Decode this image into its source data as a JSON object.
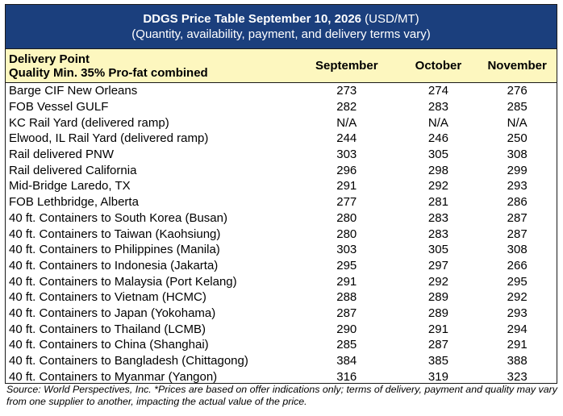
{
  "title": {
    "bold": "DDGS Price Table September 10, 2026",
    "unit": " (USD/MT)",
    "subtitle": "(Quantity, availability, payment, and delivery terms vary)"
  },
  "header": {
    "line1": "Delivery Point",
    "line2": "Quality Min. 35% Pro-fat combined",
    "months": [
      "September",
      "October",
      "November"
    ]
  },
  "rows": [
    {
      "name": "Barge CIF New Orleans",
      "sep": "273",
      "oct": "274",
      "nov": "276"
    },
    {
      "name": "FOB Vessel GULF",
      "sep": "282",
      "oct": "283",
      "nov": "285"
    },
    {
      "name": "KC Rail Yard (delivered ramp)",
      "sep": "N/A",
      "oct": "N/A",
      "nov": "N/A"
    },
    {
      "name": "Elwood, IL Rail Yard (delivered ramp)",
      "sep": "244",
      "oct": "246",
      "nov": "250"
    },
    {
      "name": "Rail delivered PNW",
      "sep": "303",
      "oct": "305",
      "nov": "308"
    },
    {
      "name": "Rail delivered California",
      "sep": "296",
      "oct": "298",
      "nov": "299"
    },
    {
      "name": "Mid-Bridge Laredo, TX",
      "sep": "291",
      "oct": "292",
      "nov": "293"
    },
    {
      "name": "FOB Lethbridge, Alberta",
      "sep": "277",
      "oct": "281",
      "nov": "286"
    },
    {
      "name": "40 ft. Containers to South Korea (Busan)",
      "sep": "280",
      "oct": "283",
      "nov": "287"
    },
    {
      "name": "40 ft. Containers to Taiwan (Kaohsiung)",
      "sep": "280",
      "oct": "283",
      "nov": "287"
    },
    {
      "name": "40 ft. Containers to Philippines (Manila)",
      "sep": "303",
      "oct": "305",
      "nov": "308"
    },
    {
      "name": "40 ft. Containers to Indonesia (Jakarta)",
      "sep": "295",
      "oct": "297",
      "nov": "266"
    },
    {
      "name": "40 ft. Containers to Malaysia (Port Kelang)",
      "sep": "291",
      "oct": "292",
      "nov": "295"
    },
    {
      "name": "40 ft. Containers to Vietnam (HCMC)",
      "sep": "288",
      "oct": "289",
      "nov": "292"
    },
    {
      "name": "40 ft. Containers to Japan (Yokohama)",
      "sep": "287",
      "oct": "289",
      "nov": "293"
    },
    {
      "name": "40 ft. Containers to Thailand (LCMB)",
      "sep": "290",
      "oct": "291",
      "nov": "294"
    },
    {
      "name": "40 ft. Containers to China (Shanghai)",
      "sep": "285",
      "oct": "287",
      "nov": "291"
    },
    {
      "name": "40 ft. Containers to Bangladesh (Chittagong)",
      "sep": "384",
      "oct": "385",
      "nov": "388"
    },
    {
      "name": "40 ft. Containers to Myanmar (Yangon)",
      "sep": "316",
      "oct": "319",
      "nov": "323"
    }
  ],
  "source": "Source: World Perspectives, Inc. *Prices are based on offer indications only; terms of delivery, payment and quality may vary from one supplier to another, impacting the actual value of the price.",
  "colors": {
    "title_bg": "#1b3f7d",
    "header_bg": "#fdf7bf"
  }
}
